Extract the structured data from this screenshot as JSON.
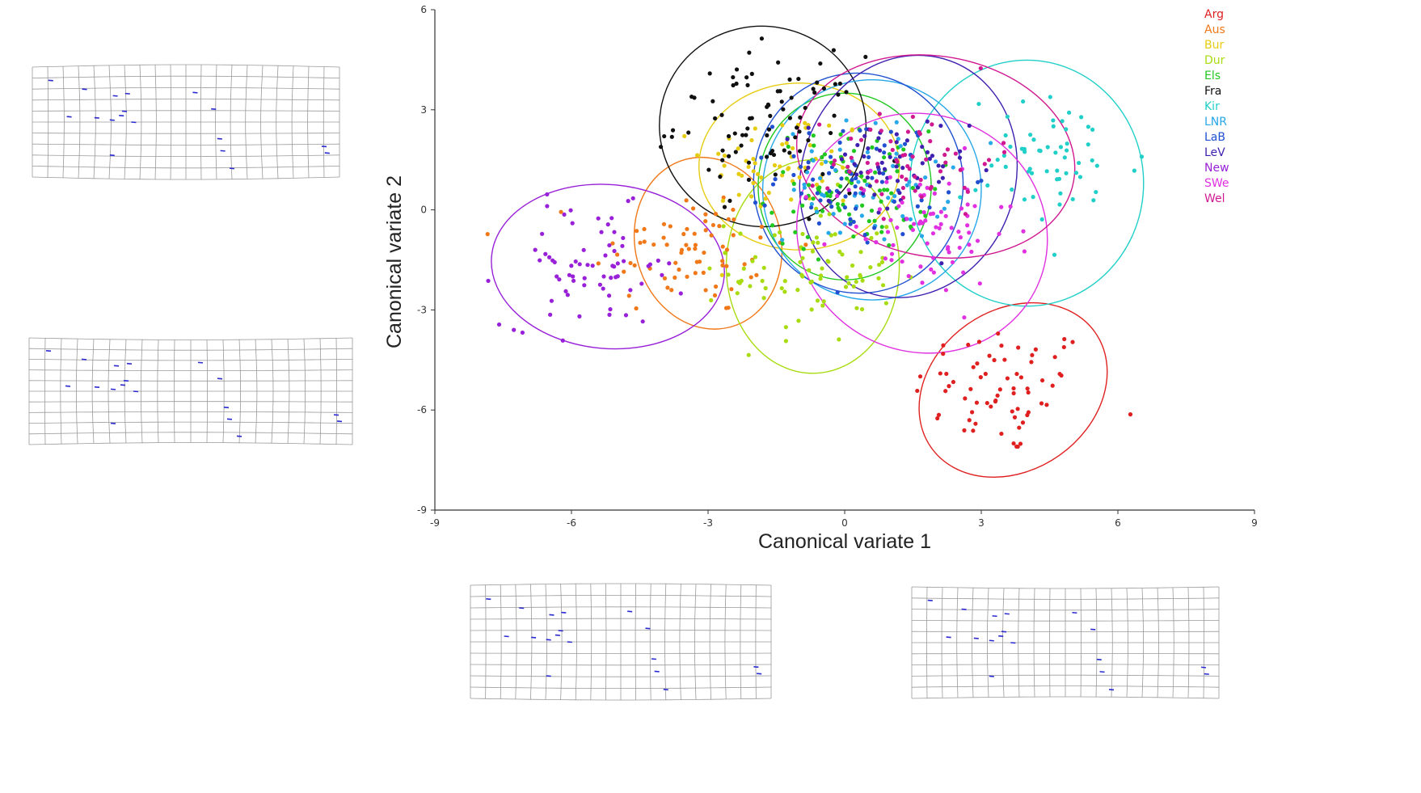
{
  "chart_data": {
    "type": "scatter",
    "title": "",
    "xlabel": "Canonical variate 1",
    "ylabel": "Canonical variate 2",
    "xlim": [
      -9,
      9
    ],
    "ylim": [
      -9,
      6
    ],
    "xticks": [
      -9,
      -6,
      -3,
      0,
      3,
      6,
      9
    ],
    "yticks": [
      -9,
      -6,
      -3,
      0,
      3,
      6
    ],
    "grid": false,
    "legend_position": "top-right",
    "series": [
      {
        "name": "Arg",
        "color": "#e02020",
        "center": [
          3.5,
          -5.4
        ],
        "sd": [
          1.0,
          1.0
        ],
        "n": 70,
        "ellipse": {
          "cx": 3.7,
          "cy": -5.4,
          "rx": 2.2,
          "ry": 2.4,
          "angle": 35
        }
      },
      {
        "name": "Aus",
        "color": "#f07818",
        "center": [
          -3.4,
          -1.2
        ],
        "sd": [
          1.1,
          1.0
        ],
        "n": 75,
        "ellipse": {
          "cx": -3.0,
          "cy": -1.0,
          "rx": 1.6,
          "ry": 2.6,
          "angle": 15
        }
      },
      {
        "name": "Bur",
        "color": "#e6cc10",
        "center": [
          -1.3,
          1.4
        ],
        "sd": [
          0.9,
          0.8
        ],
        "n": 60,
        "ellipse": {
          "cx": -1.0,
          "cy": 1.3,
          "rx": 2.2,
          "ry": 2.5,
          "angle": 0
        }
      },
      {
        "name": "Dur",
        "color": "#a8dc10",
        "center": [
          -0.7,
          -1.8
        ],
        "sd": [
          0.9,
          1.1
        ],
        "n": 85,
        "ellipse": {
          "cx": -0.7,
          "cy": -1.7,
          "rx": 1.9,
          "ry": 3.2,
          "angle": 0
        }
      },
      {
        "name": "Els",
        "color": "#20c820",
        "center": [
          0.1,
          0.6
        ],
        "sd": [
          0.9,
          0.9
        ],
        "n": 90,
        "ellipse": {
          "cx": 0.0,
          "cy": 0.7,
          "rx": 1.9,
          "ry": 2.8,
          "angle": 0
        }
      },
      {
        "name": "Fra",
        "color": "#101010",
        "center": [
          -1.7,
          2.6
        ],
        "sd": [
          1.0,
          1.0
        ],
        "n": 85,
        "ellipse": {
          "cx": -1.8,
          "cy": 2.5,
          "rx": 2.2,
          "ry": 3.1,
          "angle": 80
        }
      },
      {
        "name": "Kir",
        "color": "#20d0c8",
        "center": [
          4.6,
          1.4
        ],
        "sd": [
          1.0,
          1.0
        ],
        "n": 60,
        "ellipse": {
          "cx": 4.0,
          "cy": 0.8,
          "rx": 2.7,
          "ry": 3.5,
          "angle": 90
        }
      },
      {
        "name": "LNR",
        "color": "#28a8e8",
        "center": [
          0.5,
          0.8
        ],
        "sd": [
          0.9,
          0.9
        ],
        "n": 60,
        "ellipse": {
          "cx": 0.6,
          "cy": 0.6,
          "rx": 2.4,
          "ry": 3.3,
          "angle": 0
        }
      },
      {
        "name": "LaB",
        "color": "#2050d0",
        "center": [
          0.3,
          1.0
        ],
        "sd": [
          0.9,
          0.9
        ],
        "n": 70,
        "ellipse": {
          "cx": 0.3,
          "cy": 0.8,
          "rx": 2.3,
          "ry": 3.3,
          "angle": 5
        }
      },
      {
        "name": "LeV",
        "color": "#4020b0",
        "center": [
          0.9,
          1.1
        ],
        "sd": [
          0.9,
          0.9
        ],
        "n": 60,
        "ellipse": {
          "cx": 1.4,
          "cy": 1.0,
          "rx": 2.7,
          "ry": 3.2,
          "angle": 70
        }
      },
      {
        "name": "New",
        "color": "#9820d8",
        "center": [
          -5.5,
          -1.7
        ],
        "sd": [
          1.0,
          0.9
        ],
        "n": 70,
        "ellipse": {
          "cx": -5.2,
          "cy": -1.7,
          "rx": 1.8,
          "ry": 3.5,
          "angle": 85
        }
      },
      {
        "name": "SWe",
        "color": "#e030e0",
        "center": [
          1.7,
          -0.6
        ],
        "sd": [
          1.0,
          1.0
        ],
        "n": 80,
        "ellipse": {
          "cx": 1.7,
          "cy": -0.7,
          "rx": 2.6,
          "ry": 3.8,
          "angle": 65
        }
      },
      {
        "name": "Wel",
        "color": "#d01890",
        "center": [
          1.5,
          1.5
        ],
        "sd": [
          0.9,
          0.8
        ],
        "n": 60,
        "ellipse": {
          "cx": 2.0,
          "cy": 1.6,
          "rx": 2.2,
          "ry": 4.2,
          "angle": 80
        }
      }
    ]
  }
}
